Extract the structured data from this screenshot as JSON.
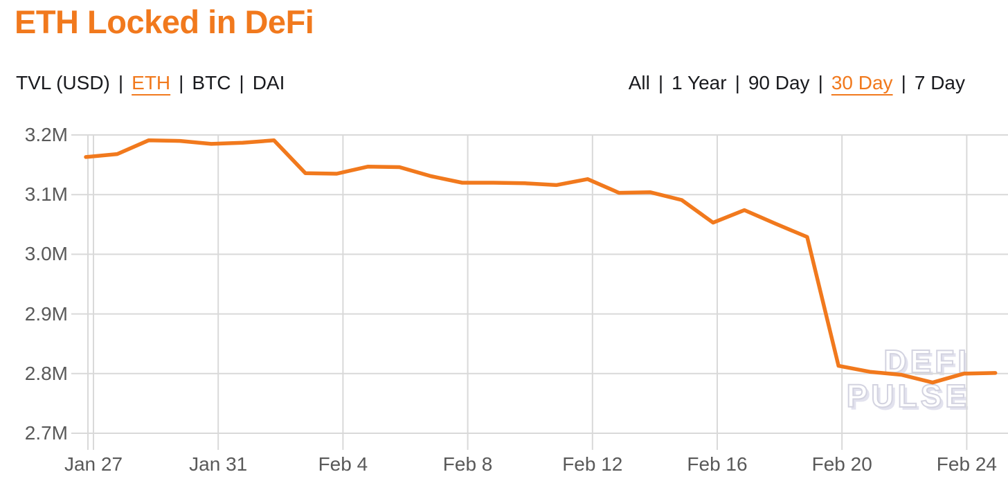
{
  "header": {
    "title": "ETH Locked in DeFi"
  },
  "filters": {
    "metric_label": "TVL (USD)",
    "separator": "|",
    "assets": [
      {
        "label": "ETH",
        "active": true
      },
      {
        "label": "BTC",
        "active": false
      },
      {
        "label": "DAI",
        "active": false
      }
    ],
    "ranges": [
      {
        "label": "All",
        "active": false
      },
      {
        "label": "1 Year",
        "active": false
      },
      {
        "label": "90 Day",
        "active": false
      },
      {
        "label": "30 Day",
        "active": true
      },
      {
        "label": "7 Day",
        "active": false
      }
    ]
  },
  "watermark": {
    "line1": "DEFI",
    "line2": "PULSE"
  },
  "colors": {
    "accent": "#f1791d",
    "line": "#f1791d",
    "grid": "#d9d9d9",
    "axis_label": "#595959",
    "text": "#191a1e"
  },
  "chart_data": {
    "type": "line",
    "title": "ETH Locked in DeFi",
    "unit": "ETH (millions)",
    "selected_metric": "TVL (USD)",
    "selected_asset": "ETH",
    "selected_range": "30 Day",
    "x": [
      "Jan 27",
      "Jan 28",
      "Jan 29",
      "Jan 30",
      "Jan 31",
      "Feb 1",
      "Feb 2",
      "Feb 3",
      "Feb 4",
      "Feb 5",
      "Feb 6",
      "Feb 7",
      "Feb 8",
      "Feb 9",
      "Feb 10",
      "Feb 11",
      "Feb 12",
      "Feb 13",
      "Feb 14",
      "Feb 15",
      "Feb 16",
      "Feb 17",
      "Feb 18",
      "Feb 19",
      "Feb 20",
      "Feb 21",
      "Feb 22",
      "Feb 23",
      "Feb 24",
      "Feb 25"
    ],
    "values": [
      3.163,
      3.168,
      3.191,
      3.19,
      3.185,
      3.187,
      3.191,
      3.136,
      3.135,
      3.147,
      3.146,
      3.131,
      3.12,
      3.12,
      3.119,
      3.116,
      3.126,
      3.103,
      3.104,
      3.091,
      3.053,
      3.074,
      3.051,
      3.029,
      2.813,
      2.803,
      2.798,
      2.785,
      2.8,
      2.801
    ],
    "x_ticks": {
      "labels": [
        "Jan 27",
        "Jan 31",
        "Feb 4",
        "Feb 8",
        "Feb 12",
        "Feb 16",
        "Feb 20",
        "Feb 24"
      ],
      "indices": [
        0,
        4,
        8,
        12,
        16,
        20,
        24,
        28
      ]
    },
    "y_ticks": {
      "labels": [
        "3.2M",
        "3.1M",
        "3.0M",
        "2.9M",
        "2.8M",
        "2.7M"
      ],
      "values": [
        3.2,
        3.1,
        3.0,
        2.9,
        2.8,
        2.7
      ]
    },
    "ylim": [
      2.7,
      3.2
    ],
    "grid": true,
    "legend": "none",
    "line_color": "#f1791d"
  }
}
